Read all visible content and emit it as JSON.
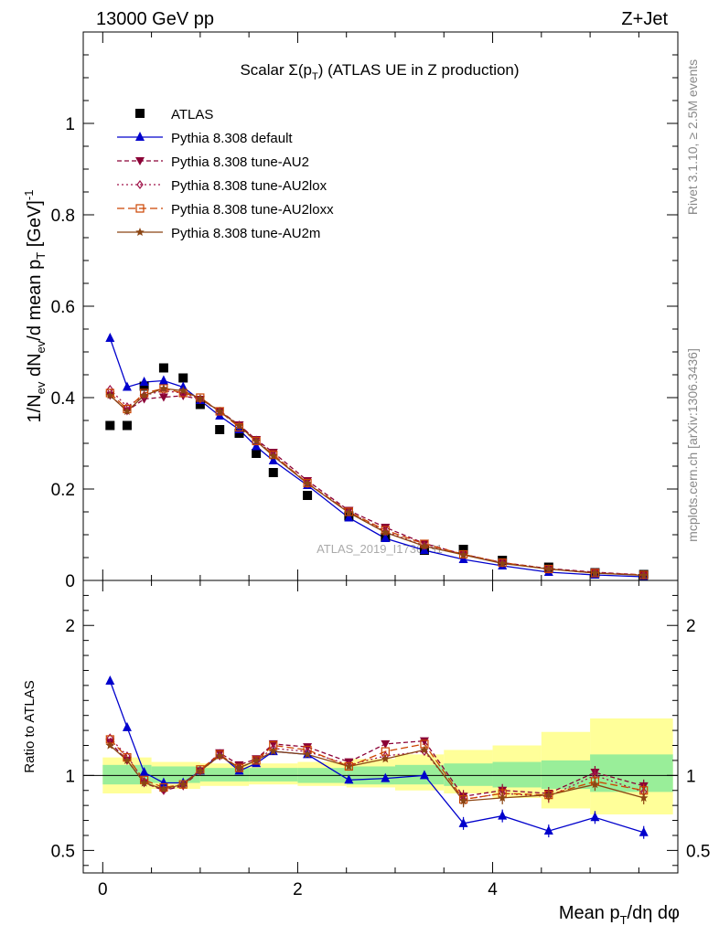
{
  "header": {
    "left": "13000 GeV pp",
    "right": "Z+Jet"
  },
  "side_labels": {
    "rivet": "Rivet 3.1.10, ≥ 2.5M events",
    "mcplots": "mcplots.cern.ch [arXiv:1306.3436]"
  },
  "watermark": "ATLAS_2019_I1736531",
  "colors": {
    "atlas": "#000000",
    "default": "#0000cc",
    "au2": "#8b0036",
    "au2lox": "#a0144a",
    "au2loxx": "#cc4400",
    "au2m": "#8b4513",
    "band_inner": "#99ee99",
    "band_outer": "#ffff99"
  },
  "chart_data": [
    {
      "type": "scatter",
      "panel": "main",
      "title": "Scalar Σ(p_T) (ATLAS UE in Z production)",
      "title_parts": {
        "a": "Scalar ",
        "b": "Σ(p",
        "c": "T",
        "d": ")",
        "e": " (ATLAS UE in Z production)"
      },
      "ylabel": "1/N_ev dN_ev/d mean p_T [GeV]^-1",
      "ylabel_parts": {
        "a": "1/N",
        "b": "ev",
        "c": " dN",
        "d": "ev",
        "e": "/d mean p",
        "f": "T",
        "g": " [GeV]",
        "h": "-1"
      },
      "xlim": [
        -0.2,
        5.9
      ],
      "ylim": [
        0,
        1.2
      ],
      "yticks": [
        "0",
        "0.2",
        "0.4",
        "0.6",
        "0.8",
        "1"
      ],
      "grid": false,
      "legend_position": "top-left",
      "x": [
        0.075,
        0.25,
        0.425,
        0.625,
        0.825,
        1.0,
        1.2,
        1.4,
        1.575,
        1.75,
        2.1,
        2.525,
        2.9,
        3.3,
        3.7,
        4.1,
        4.575,
        5.05,
        5.55
      ],
      "series": [
        {
          "key": "atlas",
          "name": "ATLAS",
          "marker": "square",
          "line": "none",
          "values": [
            0.339,
            0.339,
            0.425,
            0.465,
            0.443,
            0.385,
            0.33,
            0.322,
            0.278,
            0.236,
            0.186,
            0.141,
            0.094,
            0.066,
            0.068,
            0.044,
            0.029,
            0.017,
            0.013
          ]
        },
        {
          "key": "default",
          "name": "Pythia 8.308 default",
          "marker": "triangle-up",
          "line": "solid",
          "values": [
            0.53,
            0.423,
            0.434,
            0.437,
            0.423,
            0.394,
            0.36,
            0.33,
            0.293,
            0.262,
            0.208,
            0.137,
            0.092,
            0.066,
            0.046,
            0.032,
            0.018,
            0.012,
            0.008
          ]
        },
        {
          "key": "au2",
          "name": "Pythia 8.308 tune-AU2",
          "marker": "triangle-down",
          "line": "dashed",
          "values": [
            0.405,
            0.371,
            0.397,
            0.401,
            0.404,
            0.396,
            0.371,
            0.34,
            0.308,
            0.28,
            0.218,
            0.153,
            0.116,
            0.081,
            0.057,
            0.039,
            0.026,
            0.018,
            0.012
          ]
        },
        {
          "key": "au2lox",
          "name": "Pythia 8.308 tune-AU2lox",
          "marker": "diamond-open",
          "line": "dashed",
          "values": [
            0.418,
            0.38,
            0.405,
            0.415,
            0.41,
            0.397,
            0.37,
            0.34,
            0.307,
            0.275,
            0.212,
            0.15,
            0.107,
            0.076,
            0.057,
            0.038,
            0.025,
            0.017,
            0.012
          ]
        },
        {
          "key": "au2loxx",
          "name": "Pythia 8.308 tune-AU2loxx",
          "marker": "square-open",
          "line": "dashed",
          "values": [
            0.41,
            0.375,
            0.41,
            0.42,
            0.41,
            0.4,
            0.37,
            0.335,
            0.305,
            0.275,
            0.213,
            0.15,
            0.11,
            0.08,
            0.057,
            0.039,
            0.025,
            0.016,
            0.012
          ]
        },
        {
          "key": "au2m",
          "name": "Pythia 8.308 tune-AU2m",
          "marker": "star",
          "line": "solid",
          "values": [
            0.405,
            0.37,
            0.405,
            0.42,
            0.415,
            0.398,
            0.37,
            0.338,
            0.305,
            0.272,
            0.212,
            0.148,
            0.105,
            0.075,
            0.056,
            0.037,
            0.025,
            0.016,
            0.011
          ]
        }
      ]
    },
    {
      "type": "line",
      "panel": "ratio",
      "ylabel": "Ratio to ATLAS",
      "xlabel": "Mean p_T/dη dφ",
      "xlabel_parts": {
        "a": "Mean p",
        "b": "T",
        "c": "/dη dφ"
      },
      "xlim": [
        -0.2,
        5.9
      ],
      "ylim": [
        0.35,
        2.3
      ],
      "xticks": [
        "0",
        "2",
        "4"
      ],
      "yticks": [
        "0.5",
        "1",
        "2"
      ],
      "x": [
        0.075,
        0.25,
        0.425,
        0.625,
        0.825,
        1.0,
        1.2,
        1.4,
        1.575,
        1.75,
        2.1,
        2.525,
        2.9,
        3.3,
        3.7,
        4.1,
        4.575,
        5.05,
        5.55
      ],
      "band_edges": [
        0.0,
        0.5,
        1.0,
        1.5,
        2.0,
        2.5,
        3.0,
        3.5,
        4.0,
        4.5,
        5.0,
        5.85
      ],
      "band_inner": [
        [
          0.94,
          1.07
        ],
        [
          0.95,
          1.06
        ],
        [
          0.96,
          1.05
        ],
        [
          0.96,
          1.05
        ],
        [
          0.95,
          1.05
        ],
        [
          0.94,
          1.06
        ],
        [
          0.94,
          1.07
        ],
        [
          0.93,
          1.08
        ],
        [
          0.92,
          1.09
        ],
        [
          0.91,
          1.1
        ],
        [
          0.89,
          1.14
        ]
      ],
      "band_outer": [
        [
          0.88,
          1.12
        ],
        [
          0.91,
          1.09
        ],
        [
          0.93,
          1.08
        ],
        [
          0.94,
          1.08
        ],
        [
          0.93,
          1.09
        ],
        [
          0.92,
          1.11
        ],
        [
          0.9,
          1.14
        ],
        [
          0.88,
          1.17
        ],
        [
          0.85,
          1.2
        ],
        [
          0.78,
          1.29
        ],
        [
          0.74,
          1.38
        ]
      ],
      "series": [
        {
          "key": "default",
          "name": "Pythia 8.308 default",
          "values": [
            1.63,
            1.32,
            1.02,
            0.95,
            0.95,
            1.03,
            1.14,
            1.03,
            1.08,
            1.16,
            1.14,
            0.97,
            0.98,
            1.0,
            0.68,
            0.73,
            0.63,
            0.72,
            0.62
          ]
        },
        {
          "key": "au2",
          "name": "Pythia 8.308 tune-AU2",
          "values": [
            1.22,
            1.1,
            0.95,
            0.9,
            0.93,
            1.03,
            1.15,
            1.07,
            1.11,
            1.21,
            1.19,
            1.09,
            1.21,
            1.23,
            0.86,
            0.9,
            0.88,
            1.02,
            0.93
          ]
        },
        {
          "key": "au2lox",
          "name": "Pythia 8.308 tune-AU2lox",
          "values": [
            1.25,
            1.13,
            0.96,
            0.9,
            0.94,
            1.03,
            1.13,
            1.05,
            1.1,
            1.18,
            1.16,
            1.07,
            1.13,
            1.16,
            0.84,
            0.88,
            0.86,
            1.0,
            0.89
          ]
        },
        {
          "key": "au2loxx",
          "name": "Pythia 8.308 tune-AU2loxx",
          "values": [
            1.24,
            1.12,
            0.97,
            0.92,
            0.94,
            1.04,
            1.14,
            1.05,
            1.1,
            1.2,
            1.17,
            1.06,
            1.16,
            1.21,
            0.84,
            0.88,
            0.87,
            0.96,
            0.9
          ]
        },
        {
          "key": "au2m",
          "name": "Pythia 8.308 tune-AU2m",
          "values": [
            1.2,
            1.1,
            0.95,
            0.91,
            0.94,
            1.03,
            1.13,
            1.05,
            1.1,
            1.16,
            1.14,
            1.06,
            1.11,
            1.17,
            0.83,
            0.85,
            0.87,
            0.94,
            0.85
          ]
        }
      ]
    }
  ]
}
